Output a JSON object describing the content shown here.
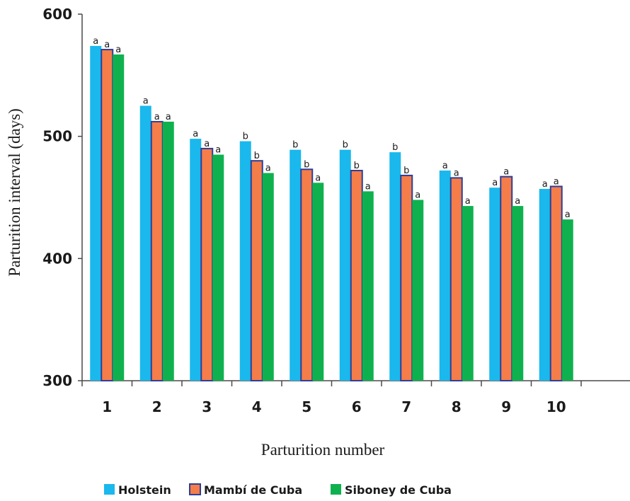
{
  "chart_data": {
    "type": "bar",
    "title": "",
    "xlabel": "Parturition number",
    "ylabel": "Parturition interval (days)",
    "ylim": [
      300,
      600
    ],
    "yticks": [
      "300",
      "400",
      "500",
      "600"
    ],
    "categories": [
      "1",
      "2",
      "3",
      "4",
      "5",
      "6",
      "7",
      "8",
      "9",
      "10"
    ],
    "legend_position": "bottom",
    "series": [
      {
        "name": "Holstein",
        "color": "#1ab8ec",
        "values": [
          574,
          525,
          498,
          496,
          489,
          489,
          487,
          472,
          458,
          457
        ],
        "labels": [
          "a",
          "a",
          "a",
          "b",
          "b",
          "b",
          "b",
          "a",
          "a",
          "a"
        ]
      },
      {
        "name": "Mambí de Cuba",
        "color": "#f47d4a",
        "border": "#2d3e9a",
        "values": [
          571,
          512,
          490,
          480,
          473,
          472,
          468,
          466,
          467,
          459
        ],
        "labels": [
          "a",
          "a",
          "a",
          "b",
          "b",
          "b",
          "b",
          "a",
          "a",
          "a"
        ]
      },
      {
        "name": "Siboney de Cuba",
        "color": "#0fb14f",
        "values": [
          567,
          512,
          485,
          470,
          462,
          455,
          448,
          443,
          443,
          432
        ],
        "labels": [
          "a",
          "a",
          "a",
          "a",
          "a",
          "a",
          "a",
          "a",
          "a",
          "a"
        ]
      }
    ]
  }
}
